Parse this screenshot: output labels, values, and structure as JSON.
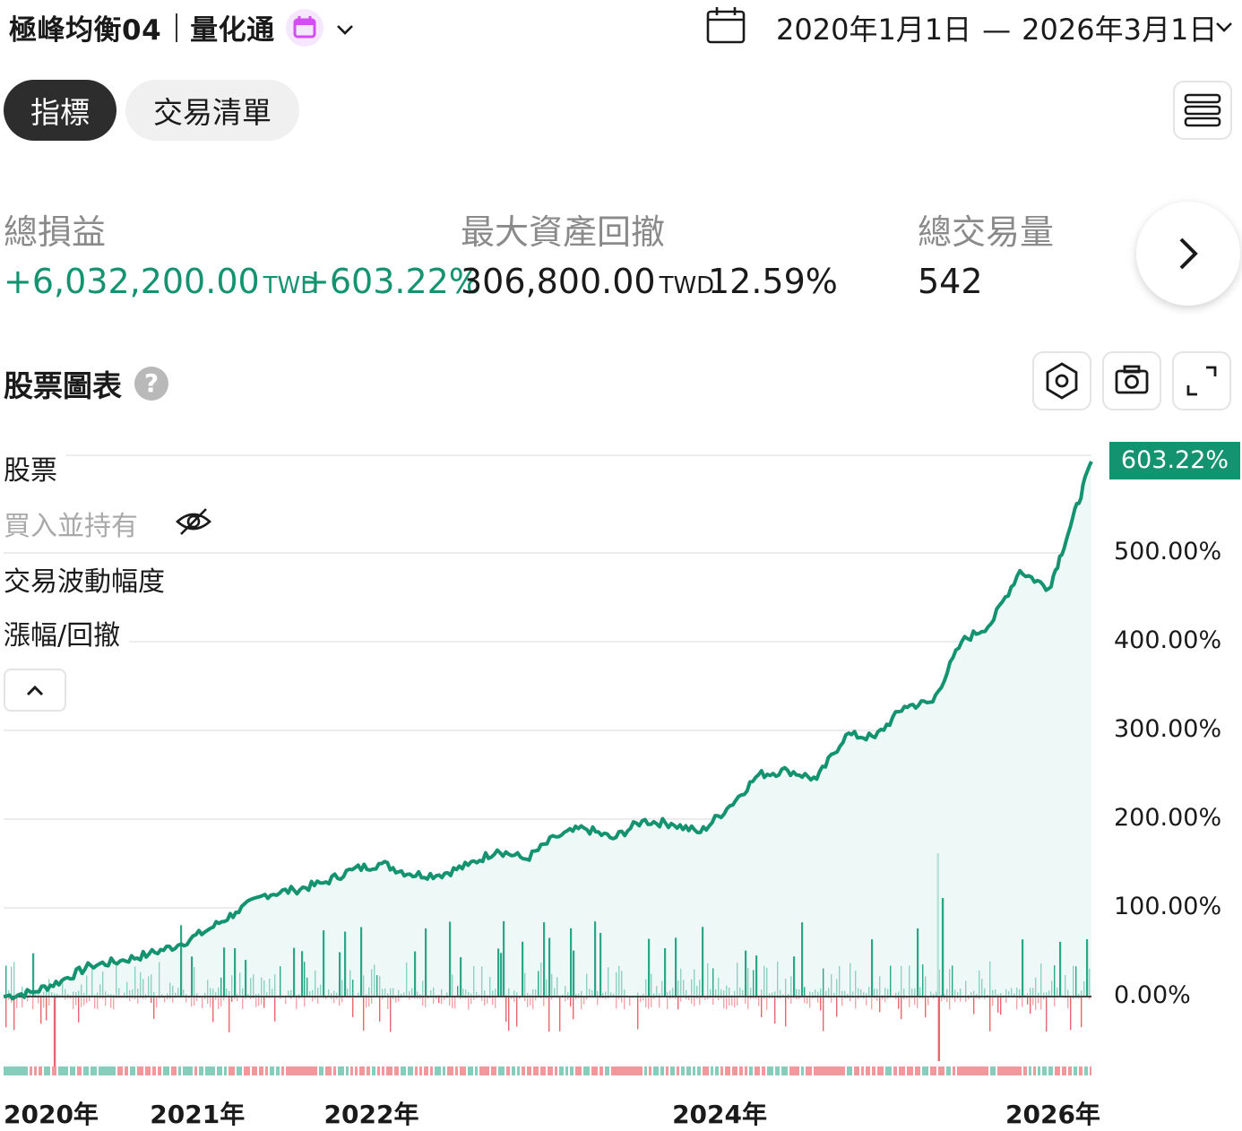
{
  "header": {
    "strategy_name": "極峰均衡04",
    "brand": "量化通",
    "date_start": "2020年1月1日",
    "date_sep": "—",
    "date_end": "2026年3月1日"
  },
  "tabs": [
    {
      "label": "指標",
      "active": true
    },
    {
      "label": "交易清單",
      "active": false
    }
  ],
  "metrics": {
    "total_pnl_label": "總損益",
    "total_pnl_value": "+6,032,200.00",
    "total_pnl_unit": "TWD",
    "total_pnl_pct": "+603.22%",
    "max_drawdown_label": "最大資產回撤",
    "max_drawdown_value": "306,800.00",
    "max_drawdown_unit": "TWD",
    "max_drawdown_pct": "12.59%",
    "total_trades_label": "總交易量",
    "total_trades_value": "542"
  },
  "chart_section": {
    "title": "股票圖表",
    "help": "?"
  },
  "legend": {
    "items": [
      "股票",
      "買入並持有",
      "交易波動幅度",
      "漲幅/回撤"
    ],
    "hidden_item": "買入並持有"
  },
  "colors": {
    "accent": "#13936f",
    "up": "#2aa786",
    "down": "#f08a8f",
    "fill": "#eef9f7",
    "brand_badge": "#f6e6ff",
    "brand_icon": "#d44cf2"
  },
  "icons": {
    "calendar": "calendar-icon",
    "menu": "list-icon",
    "next": "chevron-right-icon",
    "settings": "hexagon-settings-icon",
    "camera": "camera-icon",
    "fullscreen": "expand-icon",
    "hidden": "eye-off-icon",
    "collapse": "chevron-up-icon"
  },
  "chart_data": {
    "type": "line",
    "xlabel": "",
    "ylabel": "",
    "ylim": [
      0,
      610
    ],
    "y_ticks": [
      0,
      100,
      200,
      300,
      400,
      500
    ],
    "y_tick_labels": [
      "0.00%",
      "100.00%",
      "200.00%",
      "300.00%",
      "400.00%",
      "500.00%"
    ],
    "x_tick_labels": [
      "2020年",
      "2021年",
      "2022年",
      "2024年",
      "2026年"
    ],
    "x_tick_dates": [
      "2020-01-01",
      "2021-01-01",
      "2022-01-01",
      "2024-01-01",
      "2026-01-01"
    ],
    "x_range": [
      "2019-12-01",
      "2026-02-28"
    ],
    "last_value_label": "603.22%",
    "grid": true,
    "series": [
      {
        "x": [
          "2019-12-01",
          "2020-02-01",
          "2020-04-01",
          "2020-06-01",
          "2020-08-01",
          "2020-10-01",
          "2020-12-01",
          "2021-02-01",
          "2021-04-01",
          "2021-06-01",
          "2021-08-01",
          "2021-10-01",
          "2021-12-01",
          "2022-02-01",
          "2022-04-01",
          "2022-06-01",
          "2022-08-01",
          "2022-10-01",
          "2022-12-01",
          "2023-02-01",
          "2023-04-01",
          "2023-06-01",
          "2023-08-01",
          "2023-10-01",
          "2023-12-01",
          "2024-02-01",
          "2024-04-01",
          "2024-06-01",
          "2024-08-01",
          "2024-10-01",
          "2024-12-01",
          "2025-02-01",
          "2025-04-01",
          "2025-06-01",
          "2025-08-01",
          "2025-10-01",
          "2025-12-01",
          "2026-01-15",
          "2026-02-28"
        ],
        "y": [
          0,
          5,
          18,
          35,
          40,
          48,
          58,
          75,
          95,
          115,
          120,
          128,
          143,
          150,
          138,
          137,
          148,
          165,
          155,
          180,
          190,
          178,
          198,
          195,
          185,
          215,
          250,
          255,
          245,
          295,
          292,
          327,
          332,
          400,
          420,
          480,
          460,
          530,
          603
        ]
      }
    ],
    "bars_note": "per-trade up/down volatility bars around the 0% baseline"
  }
}
